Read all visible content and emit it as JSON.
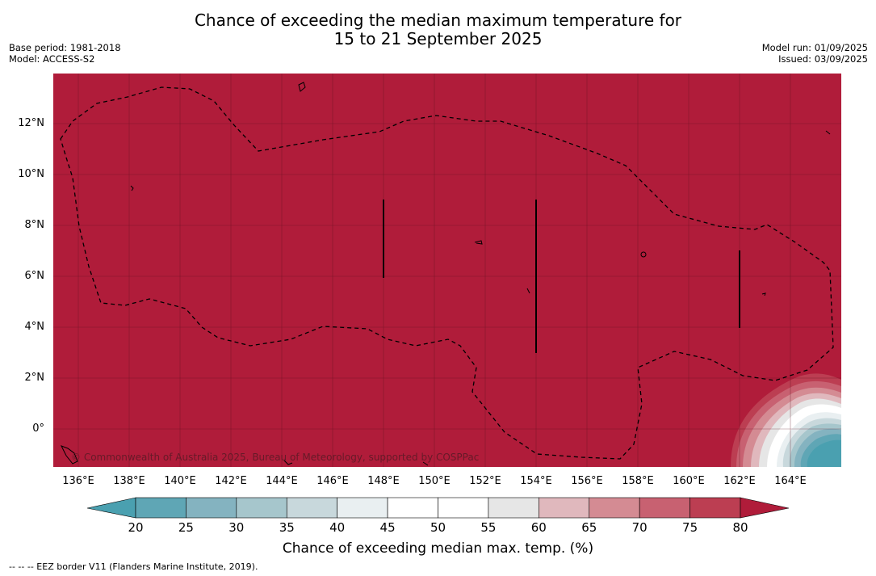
{
  "title": {
    "line1": "Chance of exceeding the median maximum temperature for",
    "line2": "15 to 21 September 2025"
  },
  "meta_left": {
    "base_period": "Base period: 1981-2018",
    "model": "Model: ACCESS-S2"
  },
  "meta_right": {
    "model_run": "Model run: 01/09/2025",
    "issued": "Issued: 03/09/2025"
  },
  "map": {
    "background_color": "#b01c3a",
    "lat_labels": [
      "12°N",
      "10°N",
      "8°N",
      "6°N",
      "4°N",
      "2°N",
      "0°"
    ],
    "lon_labels": [
      "136°E",
      "138°E",
      "140°E",
      "142°E",
      "144°E",
      "146°E",
      "148°E",
      "150°E",
      "152°E",
      "154°E",
      "156°E",
      "158°E",
      "160°E",
      "162°E",
      "164°E"
    ],
    "copyright": "© Commonwealth of Australia 2025, Bureau of Meteorology, supported by COSPPac"
  },
  "colorbar": {
    "ticks": [
      "20",
      "25",
      "30",
      "35",
      "40",
      "45",
      "50",
      "55",
      "60",
      "65",
      "70",
      "75",
      "80"
    ],
    "colors": [
      "#5fa6b5",
      "#84b3c0",
      "#a6c6cc",
      "#c8d8dc",
      "#e9eff1",
      "#ffffff",
      "#ffffff",
      "#e6e6e6",
      "#e0b8bd",
      "#d48b93",
      "#c86171",
      "#bc3e52"
    ],
    "under_color": "#4aa0b0",
    "over_color": "#b01c3a",
    "label": "Chance of exceeding median max. temp. (%)"
  },
  "footnote": "--  --  -- EEZ border V11 (Flanders Marine Institute, 2019)."
}
